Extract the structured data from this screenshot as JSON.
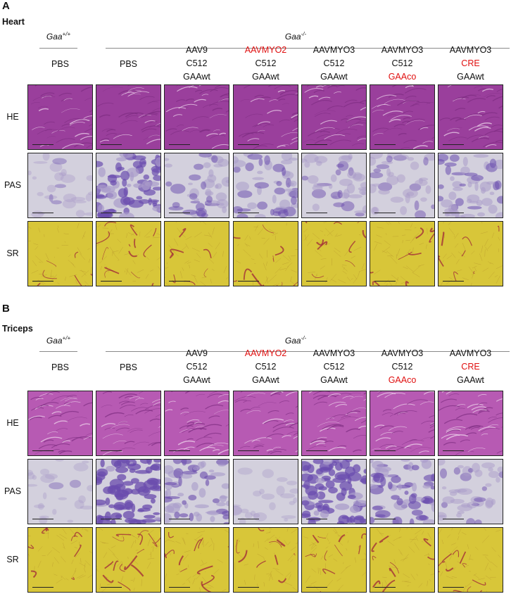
{
  "panels": [
    {
      "letter": "A",
      "tissue": "Heart",
      "genotype_wt": "Gaa",
      "genotype_wt_sup": "+/+",
      "genotype_ko": "Gaa",
      "genotype_ko_sup": "-/-",
      "columns": [
        {
          "lines": [
            "PBS"
          ],
          "red": [
            false
          ]
        },
        {
          "lines": [
            "PBS"
          ],
          "red": [
            false
          ]
        },
        {
          "lines": [
            "AAV9",
            "C512",
            "GAAwt"
          ],
          "red": [
            false,
            false,
            false
          ]
        },
        {
          "lines": [
            "AAVMYO2",
            "C512",
            "GAAwt"
          ],
          "red": [
            true,
            false,
            false
          ]
        },
        {
          "lines": [
            "AAVMYO3",
            "C512",
            "GAAwt"
          ],
          "red": [
            false,
            false,
            false
          ]
        },
        {
          "lines": [
            "AAVMYO3",
            "C512",
            "GAAco"
          ],
          "red": [
            false,
            false,
            true
          ]
        },
        {
          "lines": [
            "AAVMYO3",
            "CRE",
            "GAAwt"
          ],
          "red": [
            false,
            true,
            false
          ]
        }
      ],
      "rows": [
        "HE",
        "PAS",
        "SR"
      ]
    },
    {
      "letter": "B",
      "tissue": "Triceps",
      "genotype_wt": "Gaa",
      "genotype_wt_sup": "+/+",
      "genotype_ko": "Gaa",
      "genotype_ko_sup": "-/-",
      "columns": [
        {
          "lines": [
            "PBS"
          ],
          "red": [
            false
          ]
        },
        {
          "lines": [
            "PBS"
          ],
          "red": [
            false
          ]
        },
        {
          "lines": [
            "AAV9",
            "C512",
            "GAAwt"
          ],
          "red": [
            false,
            false,
            false
          ]
        },
        {
          "lines": [
            "AAVMYO2",
            "C512",
            "GAAwt"
          ],
          "red": [
            true,
            false,
            false
          ]
        },
        {
          "lines": [
            "AAVMYO3",
            "C512",
            "GAAwt"
          ],
          "red": [
            false,
            false,
            false
          ]
        },
        {
          "lines": [
            "AAVMYO3",
            "C512",
            "GAAco"
          ],
          "red": [
            false,
            false,
            true
          ]
        },
        {
          "lines": [
            "AAVMYO3",
            "CRE",
            "GAAwt"
          ],
          "red": [
            false,
            true,
            false
          ]
        }
      ],
      "rows": [
        "HE",
        "PAS",
        "SR"
      ]
    }
  ],
  "stain_colors": {
    "HE": "#a04aa8",
    "PAS": "#c9c4d9",
    "SR": "#d4c23a",
    "PAS_dark": "#6f52b0",
    "SR_line": "#9a2030"
  }
}
